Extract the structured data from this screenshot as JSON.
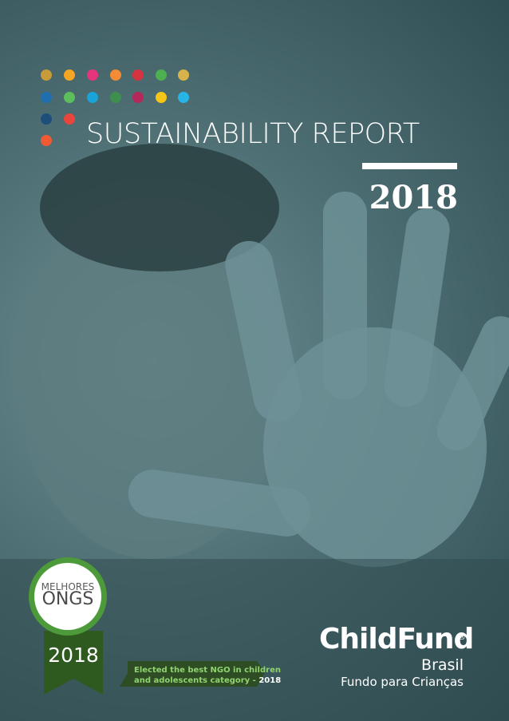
{
  "title": "SUSTAINABILITY REPORT",
  "year": "2018",
  "badge": {
    "top": "MELHORES",
    "main": "ONGS",
    "year": "2018"
  },
  "ribbon": {
    "line1": "Elected the best NGO in children",
    "line2": "and adolescents category -",
    "year": "2018"
  },
  "logo": {
    "name": "ChildFund",
    "registered": "®",
    "country": "Brasil",
    "tagline": "Fundo para Crianças"
  }
}
